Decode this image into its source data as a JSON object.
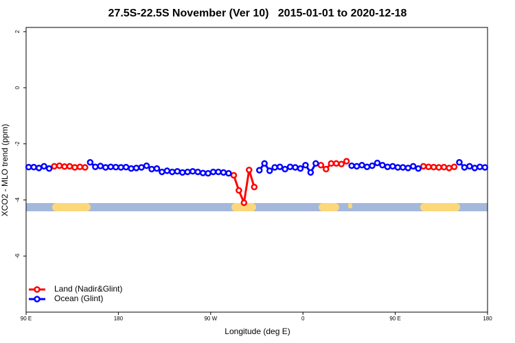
{
  "chart_data": {
    "type": "line",
    "title": "27.5S-22.5S November (Ver 10)   2015-01-01 to 2020-12-18",
    "xlabel": "Longitude (deg E)",
    "ylabel": "XCO2 - MLO trend (ppm)",
    "xlim": [
      90,
      540
    ],
    "xticks": [
      {
        "value": 90,
        "label": "90 E"
      },
      180,
      {
        "value": 270,
        "label": "90 W"
      },
      {
        "value": 360,
        "label": "0"
      },
      {
        "value": 450,
        "label": "90 E"
      },
      {
        "value": 540,
        "label": "180"
      }
    ],
    "ylim": [
      -8,
      2.15
    ],
    "yticks": [
      2,
      0,
      -2,
      -4,
      -6
    ],
    "legend": "bottom-left",
    "x": [
      92.5,
      97.5,
      102.5,
      107.5,
      112.5,
      117.5,
      122.5,
      127.5,
      132.5,
      137.5,
      142.5,
      147.5,
      152.5,
      157.5,
      162.5,
      167.5,
      172.5,
      177.5,
      182.5,
      187.5,
      192.5,
      197.5,
      202.5,
      207.5,
      212.5,
      217.5,
      222.5,
      227.5,
      232.5,
      237.5,
      242.5,
      247.5,
      252.5,
      257.5,
      262.5,
      267.5,
      272.5,
      277.5,
      282.5,
      287.5,
      292.5,
      297.5,
      302.5,
      307.5,
      312.5,
      317.5,
      322.5,
      327.5,
      332.5,
      337.5,
      342.5,
      347.5,
      352.5,
      357.5,
      362.5,
      367.5,
      372.5,
      377.5,
      382.5,
      387.5,
      392.5,
      397.5,
      402.5,
      407.5,
      412.5,
      417.5,
      422.5,
      427.5,
      432.5,
      437.5,
      442.5,
      447.5,
      452.5,
      457.5,
      462.5,
      467.5,
      472.5,
      477.5,
      482.5,
      487.5,
      492.5,
      497.5,
      502.5,
      507.5,
      512.5,
      517.5,
      522.5,
      527.5,
      532.5,
      537.5
    ],
    "series": [
      {
        "name": "Land (Nadir&Glint)",
        "color": "#ff0000",
        "values": [
          null,
          null,
          null,
          null,
          null,
          -2.8,
          -2.78,
          -2.81,
          -2.8,
          -2.84,
          -2.82,
          -2.84,
          null,
          null,
          null,
          null,
          null,
          null,
          null,
          null,
          null,
          null,
          null,
          null,
          null,
          null,
          null,
          null,
          null,
          null,
          null,
          null,
          null,
          null,
          null,
          null,
          null,
          null,
          null,
          null,
          -3.12,
          -3.66,
          -4.1,
          -2.93,
          -3.54,
          null,
          null,
          null,
          null,
          null,
          null,
          null,
          null,
          null,
          null,
          null,
          null,
          -2.76,
          -2.9,
          -2.7,
          -2.7,
          -2.72,
          -2.62,
          null,
          null,
          null,
          null,
          null,
          null,
          null,
          null,
          null,
          null,
          null,
          null,
          null,
          null,
          -2.8,
          -2.82,
          -2.83,
          -2.84,
          -2.83,
          -2.86,
          -2.82,
          null,
          null,
          null,
          null,
          null,
          null
        ]
      },
      {
        "name": "Ocean (Glint)",
        "color": "#0000ff",
        "values": [
          -2.83,
          -2.83,
          -2.86,
          -2.8,
          -2.88,
          null,
          null,
          null,
          null,
          null,
          null,
          null,
          -2.66,
          -2.82,
          -2.79,
          -2.84,
          -2.82,
          -2.83,
          -2.84,
          -2.83,
          -2.88,
          -2.86,
          -2.84,
          -2.78,
          -2.9,
          -2.88,
          -3.0,
          -2.96,
          -3.0,
          -2.98,
          -3.02,
          -3.0,
          -2.98,
          -3.0,
          -3.04,
          -3.05,
          -3.0,
          -3.0,
          -3.02,
          -3.05,
          null,
          null,
          null,
          null,
          null,
          -2.94,
          -2.7,
          -2.96,
          -2.84,
          -2.82,
          -2.9,
          -2.82,
          -2.84,
          -2.88,
          -2.76,
          -3.02,
          -2.7,
          null,
          null,
          null,
          null,
          null,
          null,
          -2.78,
          -2.8,
          -2.76,
          -2.82,
          -2.78,
          -2.68,
          -2.76,
          -2.82,
          -2.8,
          -2.84,
          -2.84,
          -2.86,
          -2.8,
          -2.88,
          null,
          null,
          null,
          null,
          null,
          null,
          null,
          -2.66,
          -2.84,
          -2.8,
          -2.86,
          -2.82,
          -2.84
        ]
      }
    ]
  }
}
